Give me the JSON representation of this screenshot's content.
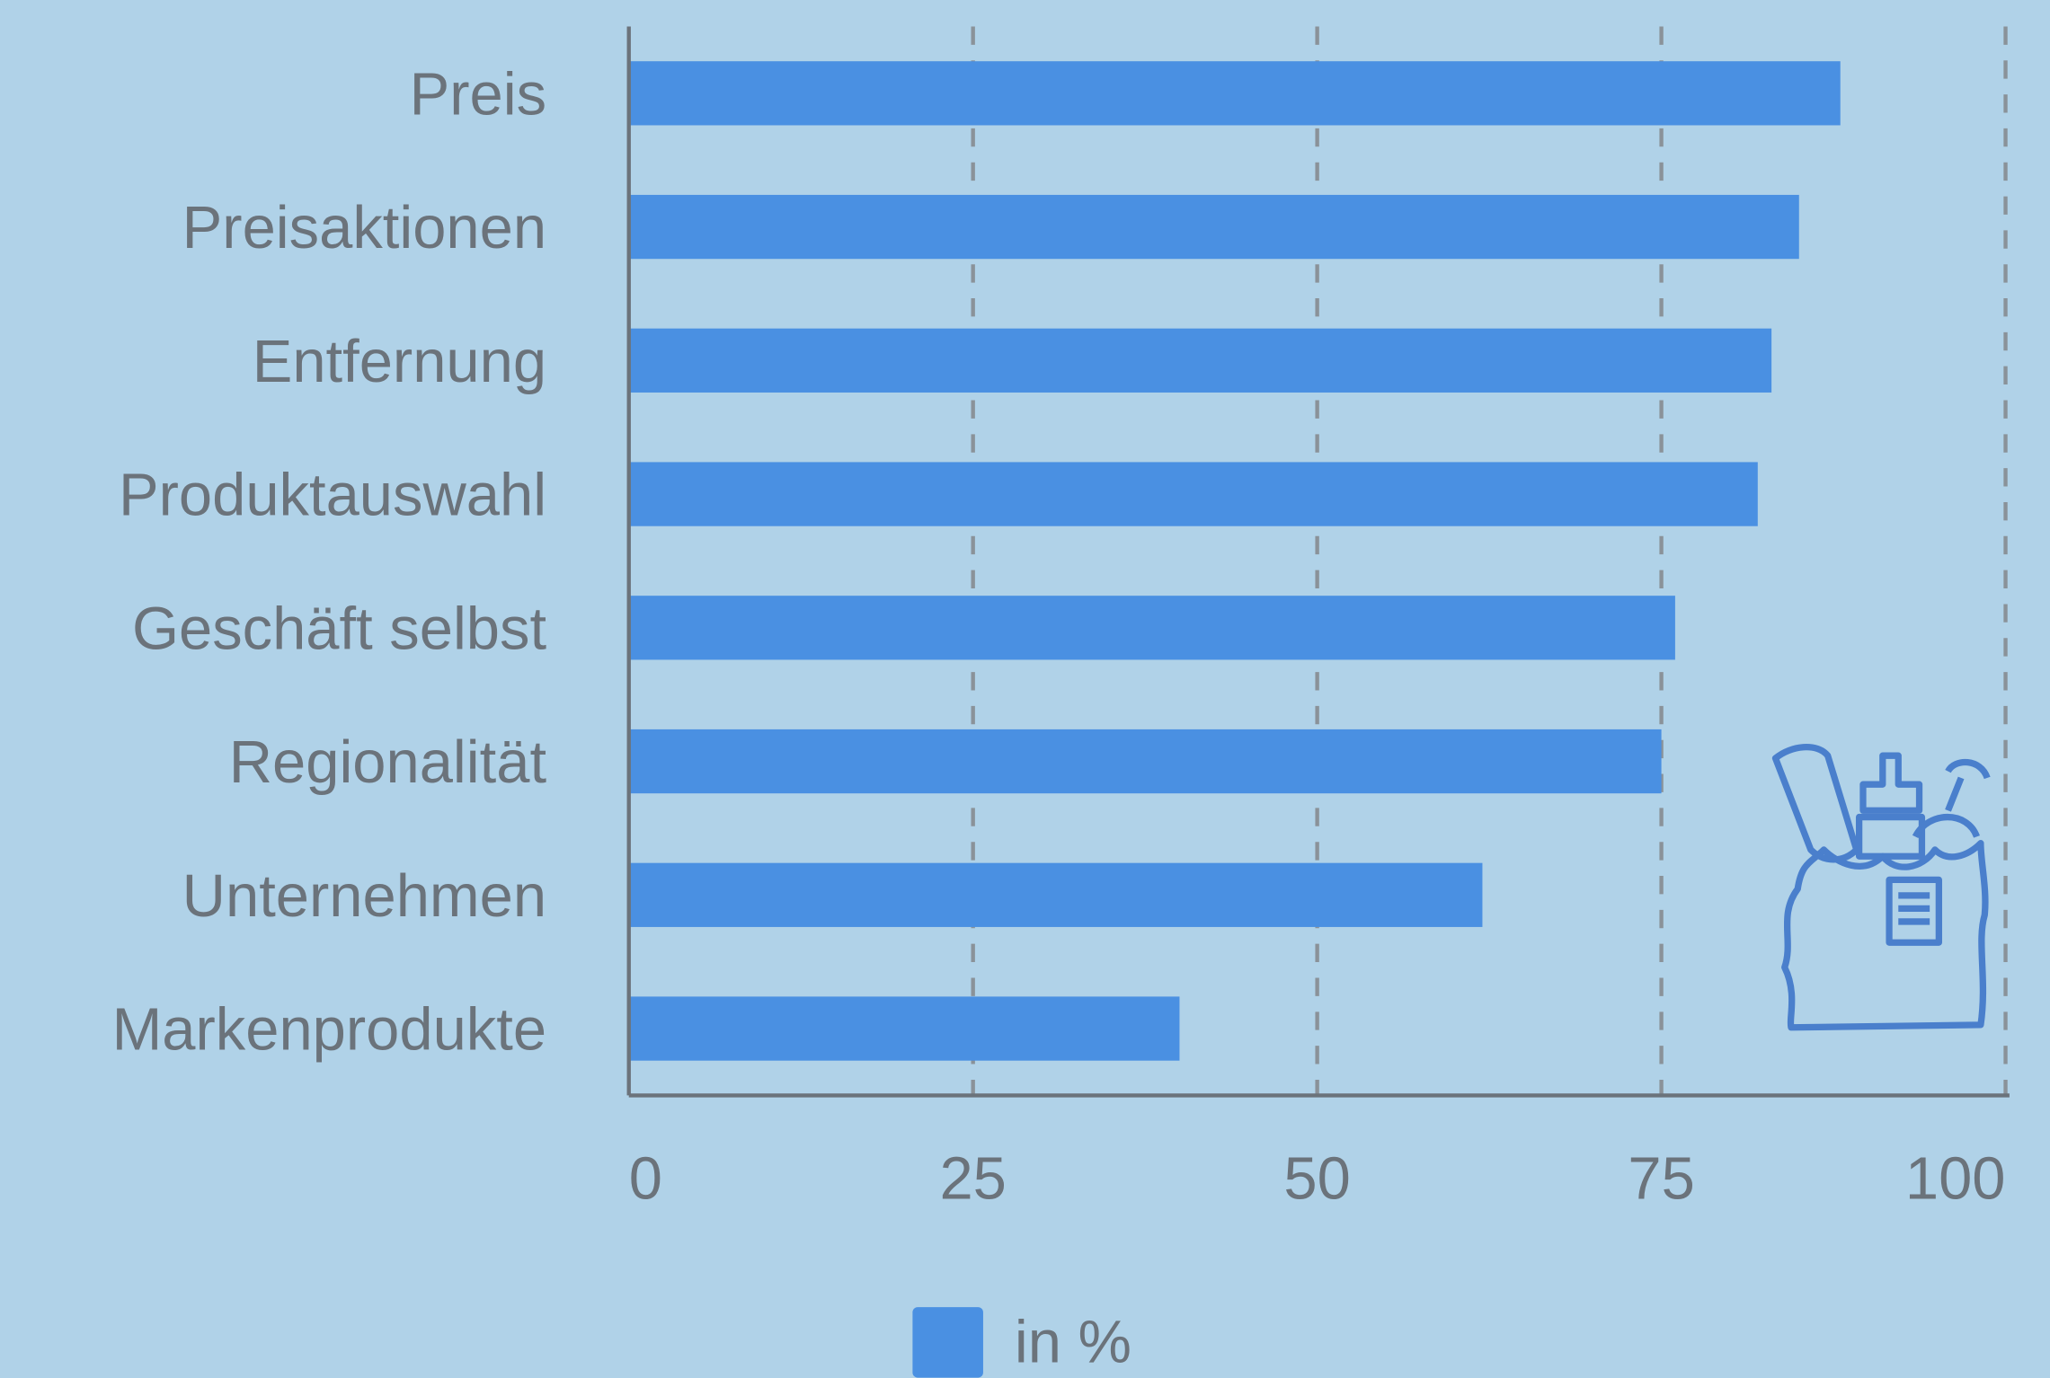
{
  "chart_data": {
    "type": "bar",
    "orientation": "horizontal",
    "categories": [
      "Preis",
      "Preisaktionen",
      "Entfernung",
      "Produktauswahl",
      "Geschäft selbst",
      "Regionalität",
      "Unternehmen",
      "Markenprodukte"
    ],
    "series": [
      {
        "name": "in %",
        "color": "#4a90e2",
        "values": [
          88,
          85,
          83,
          82,
          76,
          75,
          62,
          40
        ]
      }
    ],
    "xlim": [
      0,
      100
    ],
    "xticks": [
      0,
      25,
      50,
      75,
      100
    ],
    "grid": true,
    "legend": "bottom"
  }
}
